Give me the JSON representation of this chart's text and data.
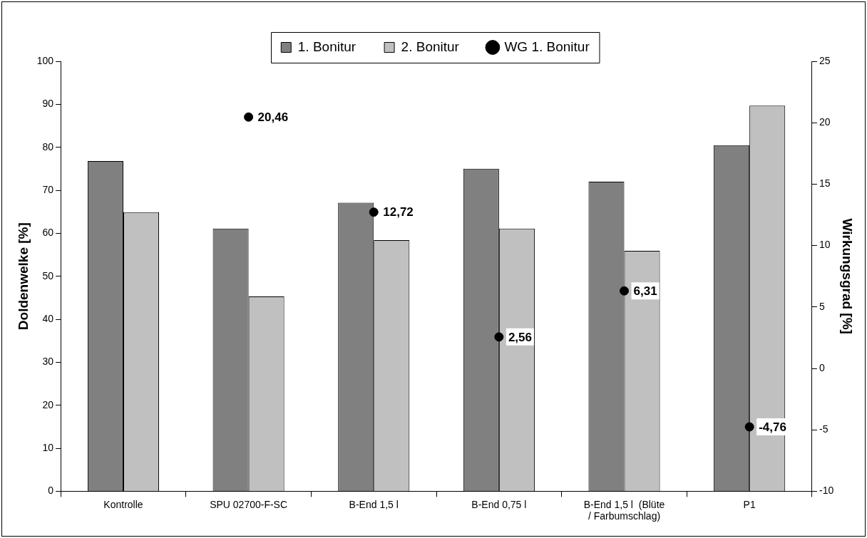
{
  "chart_data": {
    "type": "bar",
    "ylabel": "Doldenwelke [%]",
    "y2label": "Wirkungsgrad [%]",
    "categories": [
      "Kontrolle",
      "SPU 02700-F-SC",
      "B-End 1,5 l",
      "B-End 0,75 l",
      "B-End 1,5 l  (Blüte / Farbumschlag)",
      "P1"
    ],
    "series": [
      {
        "name": "1. Bonitur",
        "color": "#808080",
        "values": [
          76.8,
          61.1,
          67.1,
          75.0,
          72.0,
          80.5
        ]
      },
      {
        "name": "2. Bonitur",
        "color": "#c0c0c0",
        "values": [
          64.9,
          45.3,
          58.4,
          61.1,
          55.9,
          89.7
        ]
      },
      {
        "name": "WG 1. Bonitur",
        "type": "scatter",
        "axis": "y2",
        "color": "#000000",
        "values": [
          null,
          20.46,
          12.72,
          2.56,
          6.31,
          -4.76
        ],
        "value_labels": [
          null,
          "20,46",
          "12,72",
          "2,56",
          "6,31",
          "-4,76"
        ]
      }
    ],
    "ylim": [
      0,
      100
    ],
    "yticks": [
      0,
      10,
      20,
      30,
      40,
      50,
      60,
      70,
      80,
      90,
      100
    ],
    "y2lim": [
      -10,
      25
    ],
    "y2ticks": [
      -10,
      -5,
      0,
      5,
      10,
      15,
      20,
      25
    ],
    "grid": false,
    "legend": "top",
    "marker": "circle"
  }
}
